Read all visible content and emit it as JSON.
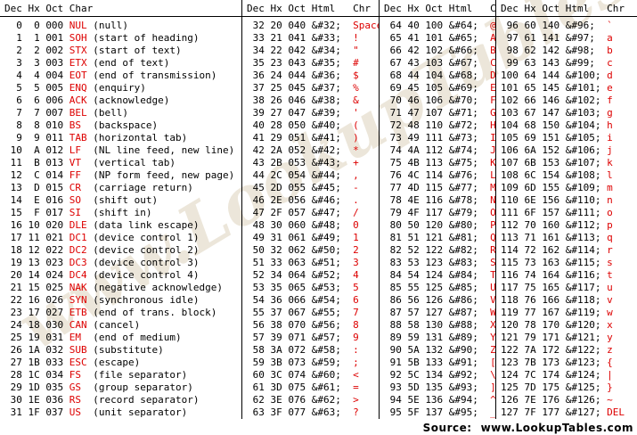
{
  "colors": {
    "accent_red": "#dd0000",
    "text": "#000000",
    "rule": "#000000",
    "watermark": "#cfc0a0"
  },
  "watermark": {
    "text": "www.LookupTables.com"
  },
  "footer": {
    "source_label": "Source:",
    "source_url": "www.LookupTables.com"
  },
  "groups": [
    {
      "headers": [
        "Dec",
        "Hx",
        "Oct",
        "Char"
      ],
      "cols": [
        "dec",
        "hx",
        "oct",
        "mnem",
        "desc"
      ],
      "rows": [
        [
          "0",
          "0",
          "000",
          "NUL",
          "(null)"
        ],
        [
          "1",
          "1",
          "001",
          "SOH",
          "(start of heading)"
        ],
        [
          "2",
          "2",
          "002",
          "STX",
          "(start of text)"
        ],
        [
          "3",
          "3",
          "003",
          "ETX",
          "(end of text)"
        ],
        [
          "4",
          "4",
          "004",
          "EOT",
          "(end of transmission)"
        ],
        [
          "5",
          "5",
          "005",
          "ENQ",
          "(enquiry)"
        ],
        [
          "6",
          "6",
          "006",
          "ACK",
          "(acknowledge)"
        ],
        [
          "7",
          "7",
          "007",
          "BEL",
          "(bell)"
        ],
        [
          "8",
          "8",
          "010",
          "BS",
          "(backspace)"
        ],
        [
          "9",
          "9",
          "011",
          "TAB",
          "(horizontal tab)"
        ],
        [
          "10",
          "A",
          "012",
          "LF",
          "(NL line feed, new line)"
        ],
        [
          "11",
          "B",
          "013",
          "VT",
          "(vertical tab)"
        ],
        [
          "12",
          "C",
          "014",
          "FF",
          "(NP form feed, new page)"
        ],
        [
          "13",
          "D",
          "015",
          "CR",
          "(carriage return)"
        ],
        [
          "14",
          "E",
          "016",
          "SO",
          "(shift out)"
        ],
        [
          "15",
          "F",
          "017",
          "SI",
          "(shift in)"
        ],
        [
          "16",
          "10",
          "020",
          "DLE",
          "(data link escape)"
        ],
        [
          "17",
          "11",
          "021",
          "DC1",
          "(device control 1)"
        ],
        [
          "18",
          "12",
          "022",
          "DC2",
          "(device control 2)"
        ],
        [
          "19",
          "13",
          "023",
          "DC3",
          "(device control 3)"
        ],
        [
          "20",
          "14",
          "024",
          "DC4",
          "(device control 4)"
        ],
        [
          "21",
          "15",
          "025",
          "NAK",
          "(negative acknowledge)"
        ],
        [
          "22",
          "16",
          "026",
          "SYN",
          "(synchronous idle)"
        ],
        [
          "23",
          "17",
          "027",
          "ETB",
          "(end of trans. block)"
        ],
        [
          "24",
          "18",
          "030",
          "CAN",
          "(cancel)"
        ],
        [
          "25",
          "19",
          "031",
          "EM",
          "(end of medium)"
        ],
        [
          "26",
          "1A",
          "032",
          "SUB",
          "(substitute)"
        ],
        [
          "27",
          "1B",
          "033",
          "ESC",
          "(escape)"
        ],
        [
          "28",
          "1C",
          "034",
          "FS",
          "(file separator)"
        ],
        [
          "29",
          "1D",
          "035",
          "GS",
          "(group separator)"
        ],
        [
          "30",
          "1E",
          "036",
          "RS",
          "(record separator)"
        ],
        [
          "31",
          "1F",
          "037",
          "US",
          "(unit separator)"
        ]
      ]
    },
    {
      "headers": [
        "Dec",
        "Hx",
        "Oct",
        "Html",
        "Chr"
      ],
      "cols": [
        "dec",
        "hx",
        "oct",
        "html",
        "chr"
      ],
      "rows": [
        [
          "32",
          "20",
          "040",
          "&#32;",
          "Space"
        ],
        [
          "33",
          "21",
          "041",
          "&#33;",
          "!"
        ],
        [
          "34",
          "22",
          "042",
          "&#34;",
          "\""
        ],
        [
          "35",
          "23",
          "043",
          "&#35;",
          "#"
        ],
        [
          "36",
          "24",
          "044",
          "&#36;",
          "$"
        ],
        [
          "37",
          "25",
          "045",
          "&#37;",
          "%"
        ],
        [
          "38",
          "26",
          "046",
          "&#38;",
          "&"
        ],
        [
          "39",
          "27",
          "047",
          "&#39;",
          "'"
        ],
        [
          "40",
          "28",
          "050",
          "&#40;",
          "("
        ],
        [
          "41",
          "29",
          "051",
          "&#41;",
          ")"
        ],
        [
          "42",
          "2A",
          "052",
          "&#42;",
          "*"
        ],
        [
          "43",
          "2B",
          "053",
          "&#43;",
          "+"
        ],
        [
          "44",
          "2C",
          "054",
          "&#44;",
          ","
        ],
        [
          "45",
          "2D",
          "055",
          "&#45;",
          "-"
        ],
        [
          "46",
          "2E",
          "056",
          "&#46;",
          "."
        ],
        [
          "47",
          "2F",
          "057",
          "&#47;",
          "/"
        ],
        [
          "48",
          "30",
          "060",
          "&#48;",
          "0"
        ],
        [
          "49",
          "31",
          "061",
          "&#49;",
          "1"
        ],
        [
          "50",
          "32",
          "062",
          "&#50;",
          "2"
        ],
        [
          "51",
          "33",
          "063",
          "&#51;",
          "3"
        ],
        [
          "52",
          "34",
          "064",
          "&#52;",
          "4"
        ],
        [
          "53",
          "35",
          "065",
          "&#53;",
          "5"
        ],
        [
          "54",
          "36",
          "066",
          "&#54;",
          "6"
        ],
        [
          "55",
          "37",
          "067",
          "&#55;",
          "7"
        ],
        [
          "56",
          "38",
          "070",
          "&#56;",
          "8"
        ],
        [
          "57",
          "39",
          "071",
          "&#57;",
          "9"
        ],
        [
          "58",
          "3A",
          "072",
          "&#58;",
          ":"
        ],
        [
          "59",
          "3B",
          "073",
          "&#59;",
          ";"
        ],
        [
          "60",
          "3C",
          "074",
          "&#60;",
          "<"
        ],
        [
          "61",
          "3D",
          "075",
          "&#61;",
          "="
        ],
        [
          "62",
          "3E",
          "076",
          "&#62;",
          ">"
        ],
        [
          "63",
          "3F",
          "077",
          "&#63;",
          "?"
        ]
      ]
    },
    {
      "headers": [
        "Dec",
        "Hx",
        "Oct",
        "Html",
        "Chr"
      ],
      "cols": [
        "dec",
        "hx",
        "oct",
        "html",
        "chr"
      ],
      "rows": [
        [
          "64",
          "40",
          "100",
          "&#64;",
          "@"
        ],
        [
          "65",
          "41",
          "101",
          "&#65;",
          "A"
        ],
        [
          "66",
          "42",
          "102",
          "&#66;",
          "B"
        ],
        [
          "67",
          "43",
          "103",
          "&#67;",
          "C"
        ],
        [
          "68",
          "44",
          "104",
          "&#68;",
          "D"
        ],
        [
          "69",
          "45",
          "105",
          "&#69;",
          "E"
        ],
        [
          "70",
          "46",
          "106",
          "&#70;",
          "F"
        ],
        [
          "71",
          "47",
          "107",
          "&#71;",
          "G"
        ],
        [
          "72",
          "48",
          "110",
          "&#72;",
          "H"
        ],
        [
          "73",
          "49",
          "111",
          "&#73;",
          "I"
        ],
        [
          "74",
          "4A",
          "112",
          "&#74;",
          "J"
        ],
        [
          "75",
          "4B",
          "113",
          "&#75;",
          "K"
        ],
        [
          "76",
          "4C",
          "114",
          "&#76;",
          "L"
        ],
        [
          "77",
          "4D",
          "115",
          "&#77;",
          "M"
        ],
        [
          "78",
          "4E",
          "116",
          "&#78;",
          "N"
        ],
        [
          "79",
          "4F",
          "117",
          "&#79;",
          "O"
        ],
        [
          "80",
          "50",
          "120",
          "&#80;",
          "P"
        ],
        [
          "81",
          "51",
          "121",
          "&#81;",
          "Q"
        ],
        [
          "82",
          "52",
          "122",
          "&#82;",
          "R"
        ],
        [
          "83",
          "53",
          "123",
          "&#83;",
          "S"
        ],
        [
          "84",
          "54",
          "124",
          "&#84;",
          "T"
        ],
        [
          "85",
          "55",
          "125",
          "&#85;",
          "U"
        ],
        [
          "86",
          "56",
          "126",
          "&#86;",
          "V"
        ],
        [
          "87",
          "57",
          "127",
          "&#87;",
          "W"
        ],
        [
          "88",
          "58",
          "130",
          "&#88;",
          "X"
        ],
        [
          "89",
          "59",
          "131",
          "&#89;",
          "Y"
        ],
        [
          "90",
          "5A",
          "132",
          "&#90;",
          "Z"
        ],
        [
          "91",
          "5B",
          "133",
          "&#91;",
          "["
        ],
        [
          "92",
          "5C",
          "134",
          "&#92;",
          "\\"
        ],
        [
          "93",
          "5D",
          "135",
          "&#93;",
          "]"
        ],
        [
          "94",
          "5E",
          "136",
          "&#94;",
          "^"
        ],
        [
          "95",
          "5F",
          "137",
          "&#95;",
          "_"
        ]
      ]
    },
    {
      "headers": [
        "Dec",
        "Hx",
        "Oct",
        "Html",
        "Chr"
      ],
      "cols": [
        "dec",
        "hx",
        "oct",
        "html",
        "chr"
      ],
      "rows": [
        [
          "96",
          "60",
          "140",
          "&#96;",
          "`"
        ],
        [
          "97",
          "61",
          "141",
          "&#97;",
          "a"
        ],
        [
          "98",
          "62",
          "142",
          "&#98;",
          "b"
        ],
        [
          "99",
          "63",
          "143",
          "&#99;",
          "c"
        ],
        [
          "100",
          "64",
          "144",
          "&#100;",
          "d"
        ],
        [
          "101",
          "65",
          "145",
          "&#101;",
          "e"
        ],
        [
          "102",
          "66",
          "146",
          "&#102;",
          "f"
        ],
        [
          "103",
          "67",
          "147",
          "&#103;",
          "g"
        ],
        [
          "104",
          "68",
          "150",
          "&#104;",
          "h"
        ],
        [
          "105",
          "69",
          "151",
          "&#105;",
          "i"
        ],
        [
          "106",
          "6A",
          "152",
          "&#106;",
          "j"
        ],
        [
          "107",
          "6B",
          "153",
          "&#107;",
          "k"
        ],
        [
          "108",
          "6C",
          "154",
          "&#108;",
          "l"
        ],
        [
          "109",
          "6D",
          "155",
          "&#109;",
          "m"
        ],
        [
          "110",
          "6E",
          "156",
          "&#110;",
          "n"
        ],
        [
          "111",
          "6F",
          "157",
          "&#111;",
          "o"
        ],
        [
          "112",
          "70",
          "160",
          "&#112;",
          "p"
        ],
        [
          "113",
          "71",
          "161",
          "&#113;",
          "q"
        ],
        [
          "114",
          "72",
          "162",
          "&#114;",
          "r"
        ],
        [
          "115",
          "73",
          "163",
          "&#115;",
          "s"
        ],
        [
          "116",
          "74",
          "164",
          "&#116;",
          "t"
        ],
        [
          "117",
          "75",
          "165",
          "&#117;",
          "u"
        ],
        [
          "118",
          "76",
          "166",
          "&#118;",
          "v"
        ],
        [
          "119",
          "77",
          "167",
          "&#119;",
          "w"
        ],
        [
          "120",
          "78",
          "170",
          "&#120;",
          "x"
        ],
        [
          "121",
          "79",
          "171",
          "&#121;",
          "y"
        ],
        [
          "122",
          "7A",
          "172",
          "&#122;",
          "z"
        ],
        [
          "123",
          "7B",
          "173",
          "&#123;",
          "{"
        ],
        [
          "124",
          "7C",
          "174",
          "&#124;",
          "|"
        ],
        [
          "125",
          "7D",
          "175",
          "&#125;",
          "}"
        ],
        [
          "126",
          "7E",
          "176",
          "&#126;",
          "~"
        ],
        [
          "127",
          "7F",
          "177",
          "&#127;",
          "DEL"
        ]
      ]
    }
  ]
}
